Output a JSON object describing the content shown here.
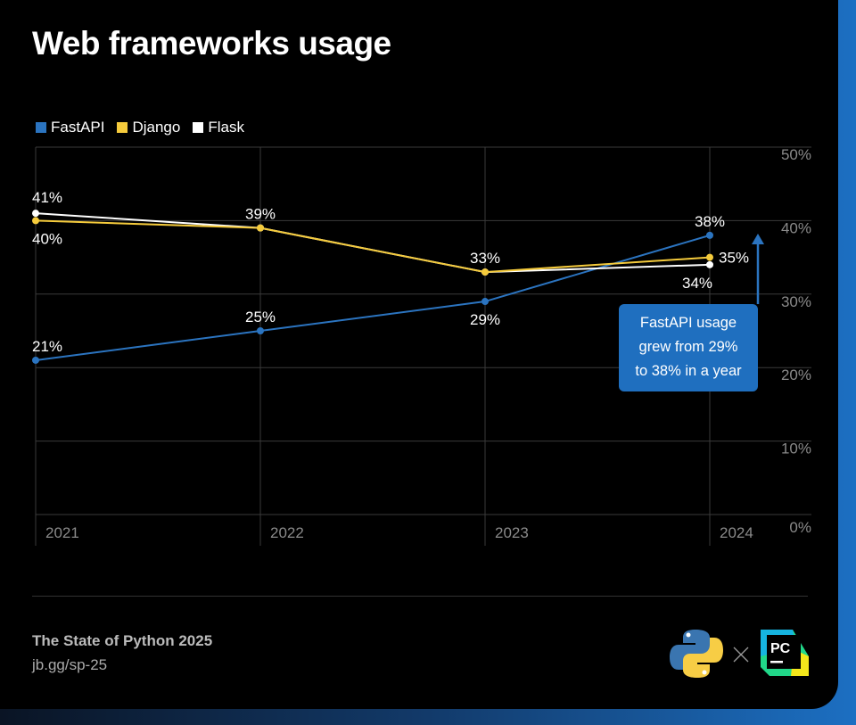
{
  "title": "Web frameworks usage",
  "footer": {
    "source": "The State of Python 2025",
    "link": "jb.gg/sp-25"
  },
  "callout": {
    "lines": [
      "FastAPI usage",
      "grew from 29%",
      "to 38% in a year"
    ]
  },
  "colors": {
    "FastAPI": "#2b74c0",
    "Django": "#f5cb3c",
    "Flask": "#ffffff"
  },
  "chart_data": {
    "type": "line",
    "title": "Web frameworks usage",
    "x": [
      "2021",
      "2022",
      "2023",
      "2024"
    ],
    "ylim": [
      0,
      50
    ],
    "yticks": [
      "0%",
      "10%",
      "20%",
      "30%",
      "40%",
      "50%"
    ],
    "legend_position": "top-left",
    "grid": true,
    "series": [
      {
        "name": "FastAPI",
        "values": [
          21,
          25,
          29,
          38
        ],
        "labels": [
          "21%",
          "25%",
          "29%",
          "38%"
        ]
      },
      {
        "name": "Django",
        "values": [
          40,
          39,
          33,
          35
        ],
        "labels": [
          "40%",
          "39%",
          "33%",
          "35%"
        ]
      },
      {
        "name": "Flask",
        "values": [
          41,
          39,
          33,
          34
        ],
        "labels": [
          "41%",
          "",
          "",
          "34%"
        ]
      }
    ]
  }
}
